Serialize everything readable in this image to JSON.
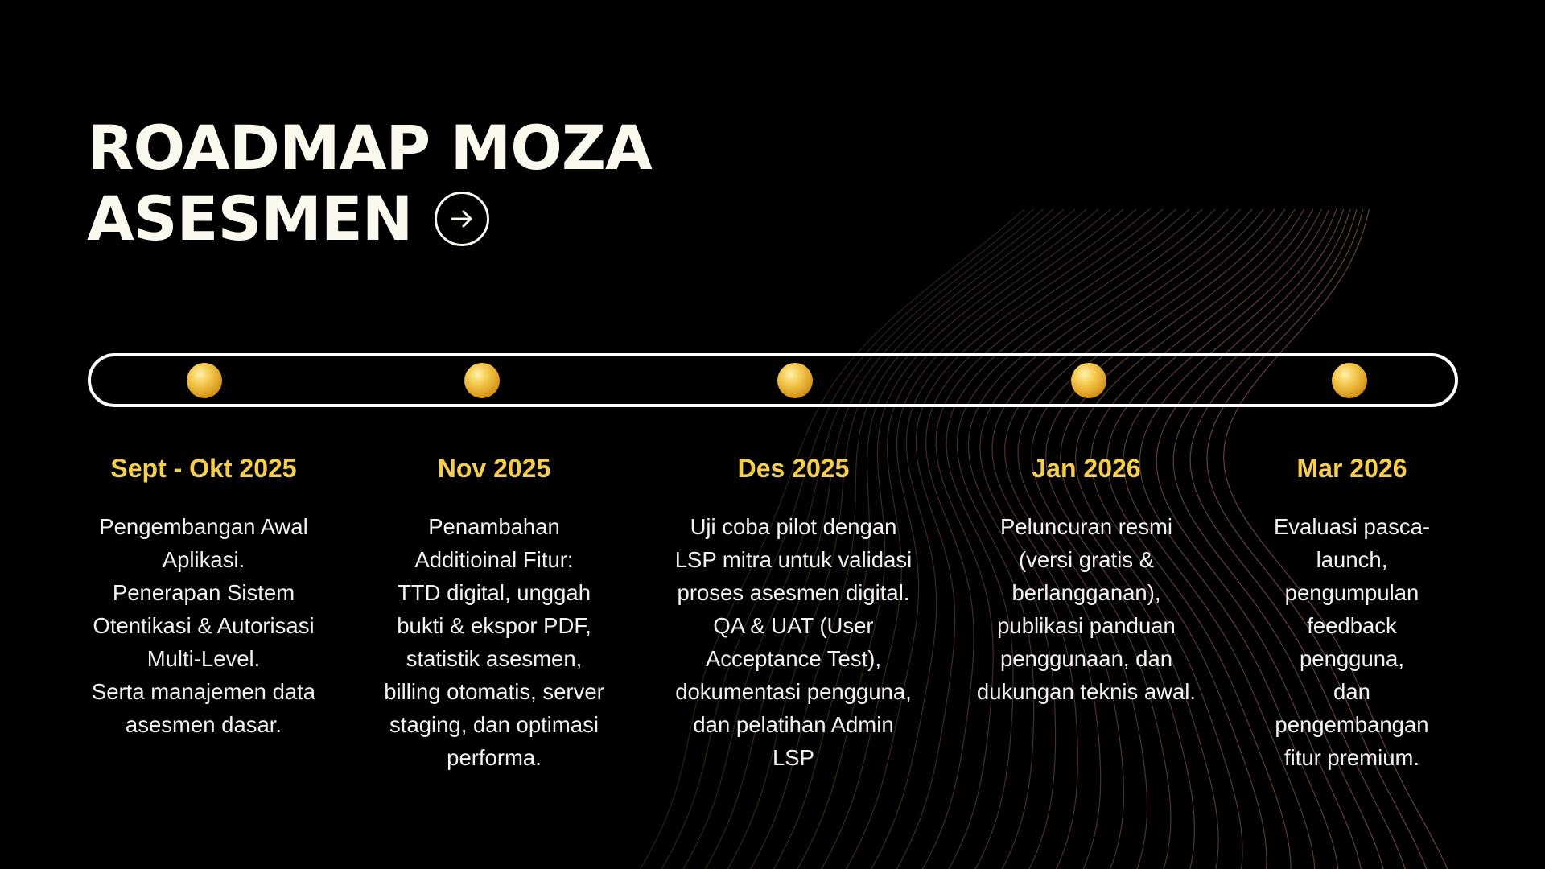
{
  "title": {
    "line1": "ROADMAP MOZA",
    "line2": "ASESMEN"
  },
  "icons": {
    "title_arrow": "arrow-right-circle-icon",
    "milestone_marker": "gold-sphere-icon"
  },
  "colors": {
    "background": "#000000",
    "title": "#fbf8ee",
    "date": "#f7ce4c",
    "text": "#f2f2f2",
    "track": "#ffffff",
    "waves": "#8a5a48"
  },
  "milestones": [
    {
      "date": "Sept - Okt 2025",
      "description": "Pengembangan Awal\nAplikasi.\nPenerapan Sistem\nOtentikasi & Autorisasi\nMulti-Level.\nSerta manajemen data\nasesmen dasar."
    },
    {
      "date": "Nov 2025",
      "description": "Penambahan\nAdditioinal Fitur:\nTTD digital, unggah\nbukti & ekspor PDF,\nstatistik asesmen,\nbilling otomatis, server\nstaging, dan optimasi\nperforma."
    },
    {
      "date": "Des 2025",
      "description": "Uji coba pilot dengan\nLSP mitra untuk validasi\nproses asesmen digital.\nQA & UAT (User\nAcceptance Test),\ndokumentasi pengguna,\ndan pelatihan Admin\nLSP"
    },
    {
      "date": "Jan 2026",
      "description": "Peluncuran resmi\n(versi gratis &\nberlangganan),\npublikasi panduan\npenggunaan, dan\ndukungan teknis awal."
    },
    {
      "date": "Mar 2026",
      "description": "Evaluasi pasca-\nlaunch,\npengumpulan\nfeedback pengguna,\ndan pengembangan\nfitur premium."
    }
  ]
}
